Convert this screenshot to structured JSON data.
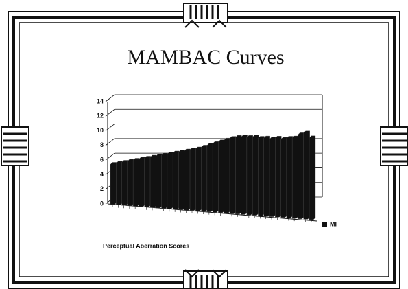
{
  "chart_data": {
    "type": "bar",
    "title": "MAMBAC Curves",
    "x_label": "Perceptual Aberration Scores",
    "categories": [
      null,
      null,
      null,
      null,
      null,
      null,
      null,
      null,
      null,
      null,
      null,
      null,
      null,
      null,
      null,
      null,
      null,
      null,
      null,
      null,
      null,
      null,
      null,
      null,
      null,
      null,
      null,
      null,
      null,
      null,
      null,
      null,
      null,
      null,
      null,
      null
    ],
    "series": [
      {
        "name": "MI",
        "color": "#111111",
        "values": [
          5.5,
          5.7,
          5.9,
          6.1,
          6.3,
          6.5,
          6.7,
          6.9,
          7.1,
          7.3,
          7.5,
          7.7,
          7.9,
          8.1,
          8.3,
          8.5,
          8.8,
          9.1,
          9.4,
          9.7,
          10,
          10.3,
          10.5,
          10.6,
          10.6,
          10.7,
          10.6,
          10.7,
          10.6,
          10.8,
          10.7,
          10.9,
          11,
          11.5,
          11.8,
          11.2
        ]
      }
    ],
    "ylim": [
      0,
      14
    ],
    "yticks": [
      0,
      2,
      4,
      6,
      8,
      10,
      12,
      14
    ],
    "grid": true
  }
}
